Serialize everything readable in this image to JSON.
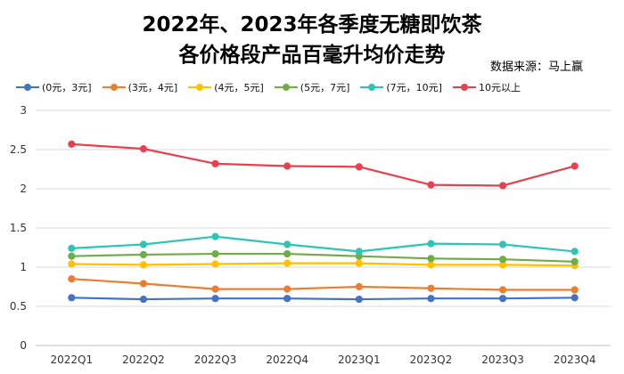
{
  "chart_data": {
    "type": "line",
    "title_line1": "2022年、2023年各季度无糖即饮茶",
    "title_line2": "各价格段产品百毫升均价走势",
    "source": "数据来源：马上赢",
    "categories": [
      "2022Q1",
      "2022Q2",
      "2022Q3",
      "2022Q4",
      "2023Q1",
      "2023Q2",
      "2023Q3",
      "2023Q4"
    ],
    "ylim": [
      0,
      3
    ],
    "yticks": [
      "0",
      "0.5",
      "1",
      "1.5",
      "2",
      "2.5",
      "3"
    ],
    "grid": true,
    "legend_position": "top",
    "series": [
      {
        "name": "(0元，3元]",
        "color": "#4472C4",
        "values": [
          0.61,
          0.59,
          0.6,
          0.6,
          0.59,
          0.6,
          0.6,
          0.61
        ]
      },
      {
        "name": "(3元，4元]",
        "color": "#ED7D31",
        "values": [
          0.85,
          0.79,
          0.72,
          0.72,
          0.75,
          0.73,
          0.71,
          0.71
        ]
      },
      {
        "name": "(4元，5元]",
        "color": "#FFC000",
        "values": [
          1.04,
          1.03,
          1.04,
          1.05,
          1.05,
          1.03,
          1.03,
          1.02
        ]
      },
      {
        "name": "(5元，7元]",
        "color": "#70AD47",
        "values": [
          1.14,
          1.16,
          1.17,
          1.17,
          1.14,
          1.11,
          1.1,
          1.07
        ]
      },
      {
        "name": "(7元，10元]",
        "color": "#2EC4B6",
        "values": [
          1.24,
          1.29,
          1.39,
          1.29,
          1.2,
          1.3,
          1.29,
          1.2
        ]
      },
      {
        "name": "10元以上",
        "color": "#E8414E",
        "values": [
          2.57,
          2.51,
          2.32,
          2.29,
          2.28,
          2.05,
          2.04,
          2.29
        ]
      }
    ]
  }
}
